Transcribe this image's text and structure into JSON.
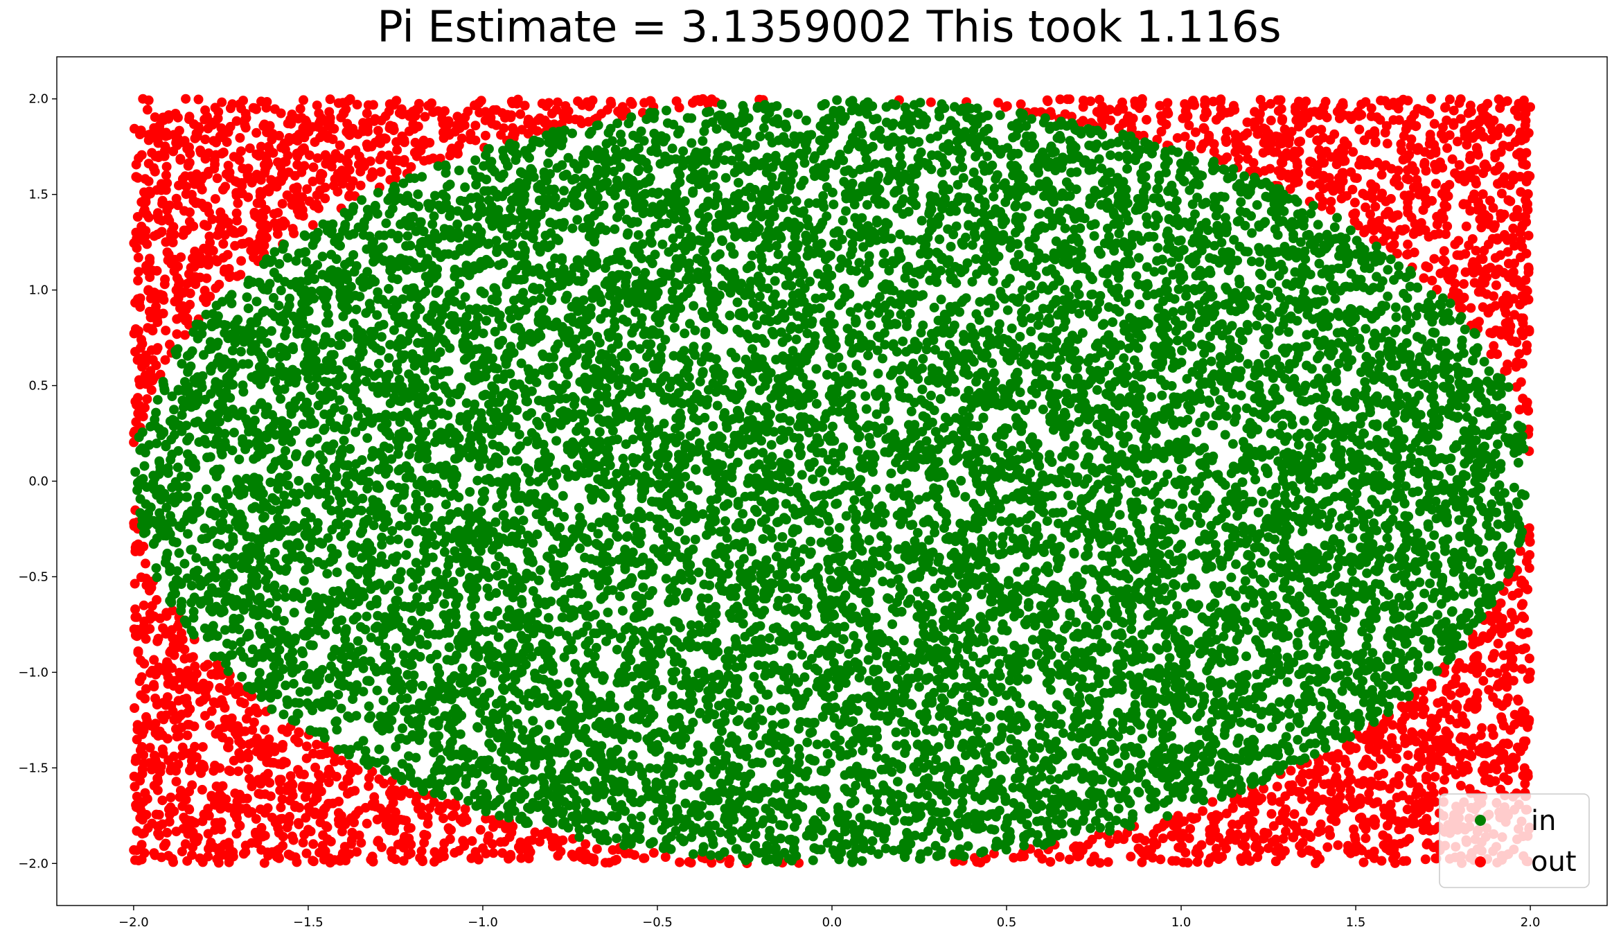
{
  "chart_data": {
    "type": "scatter",
    "title": "Pi Estimate = 3.1359002 This took 1.116s",
    "xlabel": "",
    "ylabel": "",
    "xlim": [
      -2.22,
      2.22
    ],
    "ylim": [
      -2.22,
      2.22
    ],
    "x_ticks": [
      -2.0,
      -1.5,
      -1.0,
      -0.5,
      0.0,
      0.5,
      1.0,
      1.5,
      2.0
    ],
    "x_tick_labels": [
      "−2.0",
      "−1.5",
      "−1.0",
      "−0.5",
      "0.0",
      "0.5",
      "1.0",
      "1.5",
      "2.0"
    ],
    "y_ticks": [
      2.0,
      1.5,
      1.0,
      0.5,
      0.0,
      -0.5,
      -1.0,
      -1.5,
      -2.0
    ],
    "y_tick_labels": [
      "2.0",
      "1.5",
      "1.0",
      "0.5",
      "0.0",
      "−0.5",
      "−1.0",
      "−1.5",
      "−2.0"
    ],
    "grid": false,
    "legend_position": "bottom-right",
    "sampling_region": {
      "x": [
        -2,
        2
      ],
      "y": [
        -2,
        2
      ]
    },
    "circle": {
      "center": [
        0,
        0
      ],
      "radius": 2
    },
    "series": [
      {
        "name": "in",
        "color": "#008000",
        "rule": "x^2 + y^2 <= 4"
      },
      {
        "name": "out",
        "color": "#ff0000",
        "rule": "x^2 + y^2 > 4"
      }
    ]
  }
}
